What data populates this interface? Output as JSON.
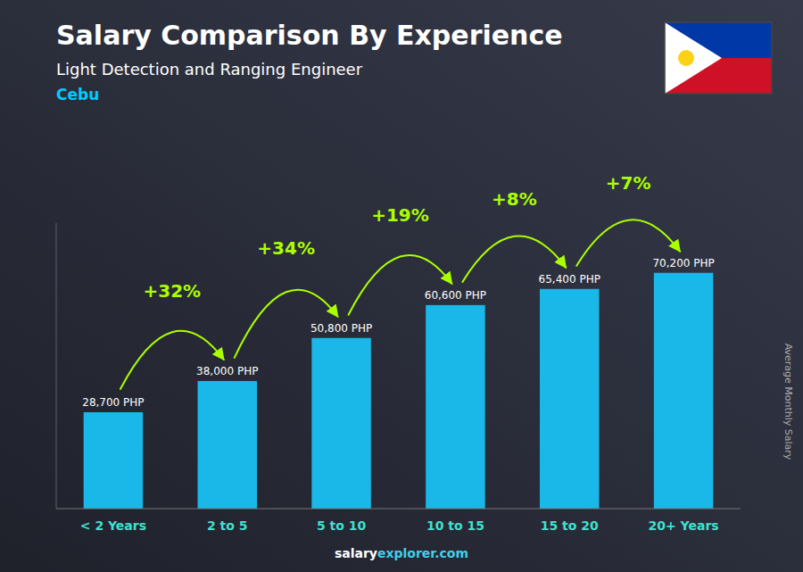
{
  "chart_data": {
    "type": "bar",
    "title": "Salary Comparison By Experience",
    "subtitle": "Light Detection and Ranging Engineer",
    "city": "Cebu",
    "ylabel": "Average Monthly Salary",
    "footer": [
      "salary",
      "explorer.com"
    ],
    "categories": [
      "< 2 Years",
      "2 to 5",
      "5 to 10",
      "10 to 15",
      "15 to 20",
      "20+ Years"
    ],
    "values": [
      28700,
      38000,
      50800,
      60600,
      65400,
      70200
    ],
    "value_labels": [
      "28,700 PHP",
      "38,000 PHP",
      "50,800 PHP",
      "60,600 PHP",
      "65,400 PHP",
      "70,200 PHP"
    ],
    "changes": [
      null,
      32,
      34,
      19,
      8,
      7
    ],
    "change_labels": [
      null,
      "+32%",
      "+34%",
      "+19%",
      "+8%",
      "+7%"
    ],
    "color": "#1ab8e8",
    "ylim": [
      0,
      85000
    ],
    "data_labels": true,
    "tick_labels": "x",
    "grid": false
  }
}
